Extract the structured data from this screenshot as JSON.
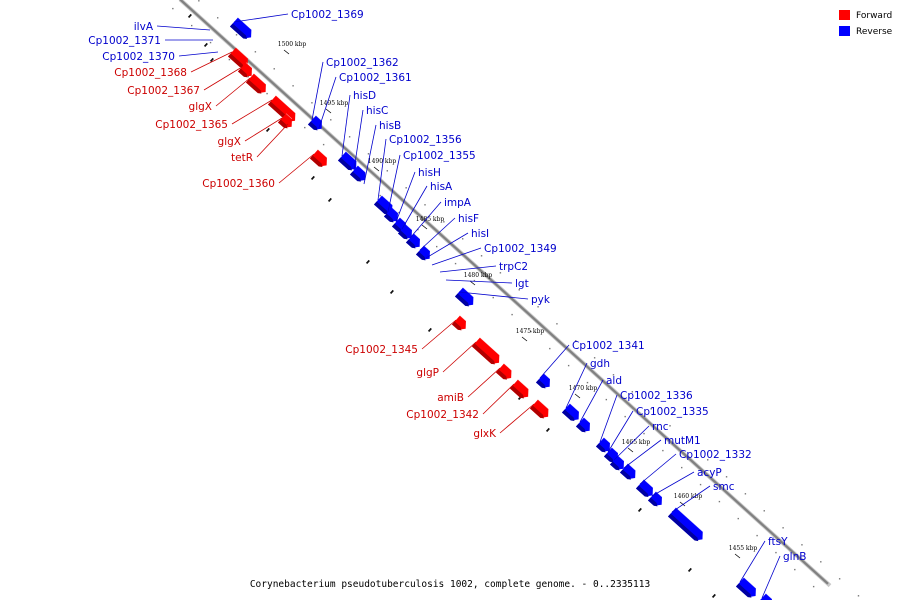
{
  "footer": "Corynebacterium pseudotuberculosis 1002, complete genome. - 0..2335113",
  "legend": [
    {
      "label": "Forward",
      "color": "#ff0000"
    },
    {
      "label": "Reverse",
      "color": "#0000ff"
    }
  ],
  "colors": {
    "forward": "#ff0000",
    "forward_dark": "#b00000",
    "reverse": "#0000ff",
    "reverse_dark": "#0000a0",
    "forward_label": "#cc0000",
    "reverse_label": "#0000cc",
    "backbone": "#808080"
  },
  "scale_ticks": [
    {
      "kbp": 1500,
      "label": "1500 kbp"
    },
    {
      "kbp": 1495,
      "label": "1495 kbp"
    },
    {
      "kbp": 1490,
      "label": "1490 kbp"
    },
    {
      "kbp": 1485,
      "label": "1485 kbp"
    },
    {
      "kbp": 1480,
      "label": "1480 kbp"
    },
    {
      "kbp": 1475,
      "label": "1475 kbp"
    },
    {
      "kbp": 1470,
      "label": "1470 kbp"
    },
    {
      "kbp": 1465,
      "label": "1465 kbp"
    },
    {
      "kbp": 1460,
      "label": "1460 kbp"
    },
    {
      "kbp": 1455,
      "label": "1455 kbp"
    }
  ],
  "genes": [
    {
      "name": "Cp1002_1369",
      "strand": "reverse"
    },
    {
      "name": "ilvA",
      "strand": "reverse"
    },
    {
      "name": "Cp1002_1371",
      "strand": "reverse"
    },
    {
      "name": "Cp1002_1370",
      "strand": "reverse"
    },
    {
      "name": "Cp1002_1368",
      "strand": "forward"
    },
    {
      "name": "Cp1002_1367",
      "strand": "forward"
    },
    {
      "name": "glgX",
      "strand": "forward"
    },
    {
      "name": "Cp1002_1365",
      "strand": "forward"
    },
    {
      "name": "glgX",
      "strand": "forward"
    },
    {
      "name": "tetR",
      "strand": "forward"
    },
    {
      "name": "Cp1002_1360",
      "strand": "forward"
    },
    {
      "name": "Cp1002_1362",
      "strand": "reverse"
    },
    {
      "name": "Cp1002_1361",
      "strand": "reverse"
    },
    {
      "name": "hisD",
      "strand": "reverse"
    },
    {
      "name": "hisC",
      "strand": "reverse"
    },
    {
      "name": "hisB",
      "strand": "reverse"
    },
    {
      "name": "Cp1002_1356",
      "strand": "reverse"
    },
    {
      "name": "Cp1002_1355",
      "strand": "reverse"
    },
    {
      "name": "hisH",
      "strand": "reverse"
    },
    {
      "name": "hisA",
      "strand": "reverse"
    },
    {
      "name": "impA",
      "strand": "reverse"
    },
    {
      "name": "hisF",
      "strand": "reverse"
    },
    {
      "name": "hisI",
      "strand": "reverse"
    },
    {
      "name": "Cp1002_1349",
      "strand": "reverse"
    },
    {
      "name": "trpC2",
      "strand": "reverse"
    },
    {
      "name": "lgt",
      "strand": "reverse"
    },
    {
      "name": "pyk",
      "strand": "reverse"
    },
    {
      "name": "Cp1002_1345",
      "strand": "forward"
    },
    {
      "name": "glgP",
      "strand": "forward"
    },
    {
      "name": "amiB",
      "strand": "forward"
    },
    {
      "name": "Cp1002_1342",
      "strand": "forward"
    },
    {
      "name": "glxK",
      "strand": "forward"
    },
    {
      "name": "Cp1002_1341",
      "strand": "reverse"
    },
    {
      "name": "gdh",
      "strand": "reverse"
    },
    {
      "name": "ald",
      "strand": "reverse"
    },
    {
      "name": "Cp1002_1336",
      "strand": "reverse"
    },
    {
      "name": "Cp1002_1335",
      "strand": "reverse"
    },
    {
      "name": "rnc",
      "strand": "reverse"
    },
    {
      "name": "mutM1",
      "strand": "reverse"
    },
    {
      "name": "Cp1002_1332",
      "strand": "reverse"
    },
    {
      "name": "acyP",
      "strand": "reverse"
    },
    {
      "name": "smc",
      "strand": "reverse"
    },
    {
      "name": "ftsY",
      "strand": "reverse"
    },
    {
      "name": "glnB",
      "strand": "reverse"
    }
  ]
}
